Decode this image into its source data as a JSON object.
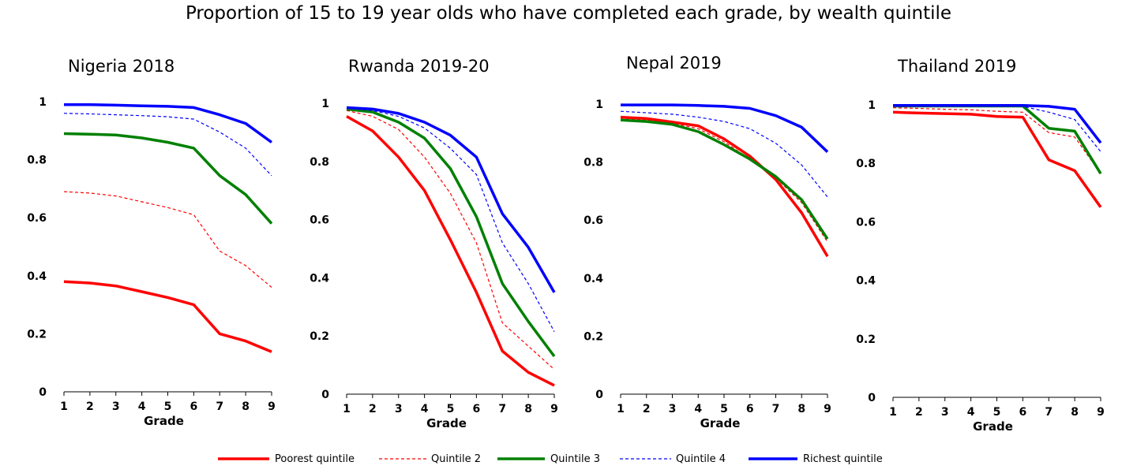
{
  "page_title": "Proportion of 15 to 19 year olds who have completed each grade, by wealth quintile",
  "series_styles": [
    {
      "name": "Poorest quintile",
      "color": "#ff0000",
      "dashed": false
    },
    {
      "name": "Quintile 2",
      "color": "#ff0000",
      "dashed": true
    },
    {
      "name": "Quintile 3",
      "color": "#008000",
      "dashed": false
    },
    {
      "name": "Quintile 4",
      "color": "#0000ff",
      "dashed": true
    },
    {
      "name": "Richest quintile",
      "color": "#0000ff",
      "dashed": false
    }
  ],
  "chart_data": [
    {
      "type": "line",
      "title": "Nigeria 2018",
      "xlabel": "Grade",
      "ylabel": "",
      "x": [
        1,
        2,
        3,
        4,
        5,
        6,
        7,
        8,
        9
      ],
      "ylim": [
        0,
        1
      ],
      "yticks": [
        0,
        0.2,
        0.4,
        0.6,
        0.8,
        1
      ],
      "ytick_labels": [
        "0",
        "0.2",
        "0.4",
        "0.6",
        "0.8",
        "1"
      ],
      "grid": false,
      "series": [
        {
          "name": "Poorest quintile",
          "values": [
            0.38,
            0.375,
            0.365,
            0.345,
            0.325,
            0.3,
            0.2,
            0.175,
            0.138
          ]
        },
        {
          "name": "Quintile 2",
          "values": [
            0.69,
            0.685,
            0.675,
            0.655,
            0.635,
            0.61,
            0.485,
            0.435,
            0.36
          ]
        },
        {
          "name": "Quintile 3",
          "values": [
            0.89,
            0.888,
            0.885,
            0.875,
            0.86,
            0.84,
            0.745,
            0.68,
            0.58
          ]
        },
        {
          "name": "Quintile 4",
          "values": [
            0.96,
            0.958,
            0.955,
            0.952,
            0.948,
            0.94,
            0.895,
            0.84,
            0.745
          ]
        },
        {
          "name": "Richest quintile",
          "values": [
            0.99,
            0.99,
            0.988,
            0.986,
            0.984,
            0.98,
            0.955,
            0.925,
            0.86
          ]
        }
      ]
    },
    {
      "type": "line",
      "title": "Rwanda 2019-20",
      "xlabel": "Grade",
      "ylabel": "",
      "x": [
        1,
        2,
        3,
        4,
        5,
        6,
        7,
        8,
        9
      ],
      "ylim": [
        0,
        1
      ],
      "yticks": [
        0,
        0.2,
        0.4,
        0.6,
        0.8,
        1
      ],
      "ytick_labels": [
        "0",
        "0.2",
        "0.4",
        "0.6",
        "0.8",
        "1"
      ],
      "grid": false,
      "series": [
        {
          "name": "Poorest quintile",
          "values": [
            0.955,
            0.905,
            0.815,
            0.7,
            0.53,
            0.35,
            0.148,
            0.075,
            0.03
          ]
        },
        {
          "name": "Quintile 2",
          "values": [
            0.975,
            0.955,
            0.91,
            0.815,
            0.69,
            0.52,
            0.245,
            0.165,
            0.085
          ]
        },
        {
          "name": "Quintile 3",
          "values": [
            0.98,
            0.97,
            0.935,
            0.88,
            0.775,
            0.61,
            0.38,
            0.25,
            0.13
          ]
        },
        {
          "name": "Quintile 4",
          "values": [
            0.983,
            0.975,
            0.955,
            0.915,
            0.845,
            0.755,
            0.52,
            0.38,
            0.215
          ]
        },
        {
          "name": "Richest quintile",
          "values": [
            0.985,
            0.98,
            0.965,
            0.935,
            0.89,
            0.815,
            0.62,
            0.505,
            0.35
          ]
        }
      ]
    },
    {
      "type": "line",
      "title": "Nepal 2019",
      "xlabel": "Grade",
      "ylabel": "",
      "x": [
        1,
        2,
        3,
        4,
        5,
        6,
        7,
        8,
        9
      ],
      "ylim": [
        0,
        1
      ],
      "yticks": [
        0,
        0.2,
        0.4,
        0.6,
        0.8,
        1
      ],
      "ytick_labels": [
        "0",
        "0.2",
        "0.4",
        "0.6",
        "0.8",
        "1"
      ],
      "grid": false,
      "series": [
        {
          "name": "Poorest quintile",
          "values": [
            0.955,
            0.95,
            0.938,
            0.925,
            0.88,
            0.82,
            0.74,
            0.625,
            0.475
          ]
        },
        {
          "name": "Quintile 2",
          "values": [
            0.952,
            0.945,
            0.935,
            0.915,
            0.87,
            0.81,
            0.745,
            0.66,
            0.525
          ]
        },
        {
          "name": "Quintile 3",
          "values": [
            0.945,
            0.94,
            0.93,
            0.905,
            0.86,
            0.81,
            0.75,
            0.67,
            0.535
          ]
        },
        {
          "name": "Quintile 4",
          "values": [
            0.975,
            0.97,
            0.965,
            0.955,
            0.94,
            0.915,
            0.865,
            0.79,
            0.68
          ]
        },
        {
          "name": "Richest quintile",
          "values": [
            0.997,
            0.997,
            0.997,
            0.995,
            0.992,
            0.985,
            0.96,
            0.92,
            0.835
          ]
        }
      ]
    },
    {
      "type": "line",
      "title": "Thailand 2019",
      "xlabel": "Grade",
      "ylabel": "",
      "x": [
        1,
        2,
        3,
        4,
        5,
        6,
        7,
        8,
        9
      ],
      "ylim": [
        0,
        1
      ],
      "yticks": [
        0,
        0.2,
        0.4,
        0.6,
        0.8,
        1
      ],
      "ytick_labels": [
        "0",
        "0.2",
        "0.4",
        "0.6",
        "0.8",
        "1"
      ],
      "grid": false,
      "series": [
        {
          "name": "Poorest quintile",
          "values": [
            0.975,
            0.972,
            0.97,
            0.968,
            0.96,
            0.958,
            0.812,
            0.775,
            0.65
          ]
        },
        {
          "name": "Quintile 2",
          "values": [
            0.99,
            0.988,
            0.985,
            0.983,
            0.978,
            0.975,
            0.905,
            0.89,
            0.765
          ]
        },
        {
          "name": "Quintile 3",
          "values": [
            0.996,
            0.996,
            0.996,
            0.996,
            0.996,
            0.996,
            0.92,
            0.91,
            0.765
          ]
        },
        {
          "name": "Quintile 4",
          "values": [
            0.995,
            0.995,
            0.995,
            0.995,
            0.995,
            0.995,
            0.975,
            0.95,
            0.84
          ]
        },
        {
          "name": "Richest quintile",
          "values": [
            0.998,
            0.998,
            0.998,
            0.998,
            0.998,
            0.998,
            0.995,
            0.985,
            0.87
          ]
        }
      ]
    }
  ]
}
